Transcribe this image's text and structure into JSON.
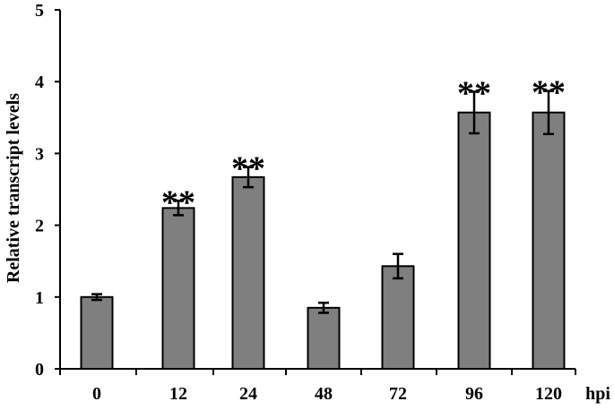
{
  "chart_data": {
    "type": "bar",
    "ylabel": "Relative transcript levels",
    "xunit": "hpi",
    "categories": [
      "0",
      "12",
      "24",
      "48",
      "72",
      "96",
      "120"
    ],
    "values": [
      1.0,
      2.24,
      2.67,
      0.85,
      1.43,
      3.57,
      3.57
    ],
    "errors": [
      0.04,
      0.1,
      0.14,
      0.07,
      0.17,
      0.29,
      0.3
    ],
    "significance": [
      "",
      "**",
      "**",
      "",
      "",
      "**",
      "**"
    ],
    "ylim": [
      0,
      5
    ],
    "yticks": [
      "0",
      "1",
      "2",
      "3",
      "4",
      "5"
    ],
    "grid": false,
    "colors": {
      "bar_fill": "#7f7f7f",
      "bar_stroke": "#000000",
      "axis": "#000000"
    }
  }
}
